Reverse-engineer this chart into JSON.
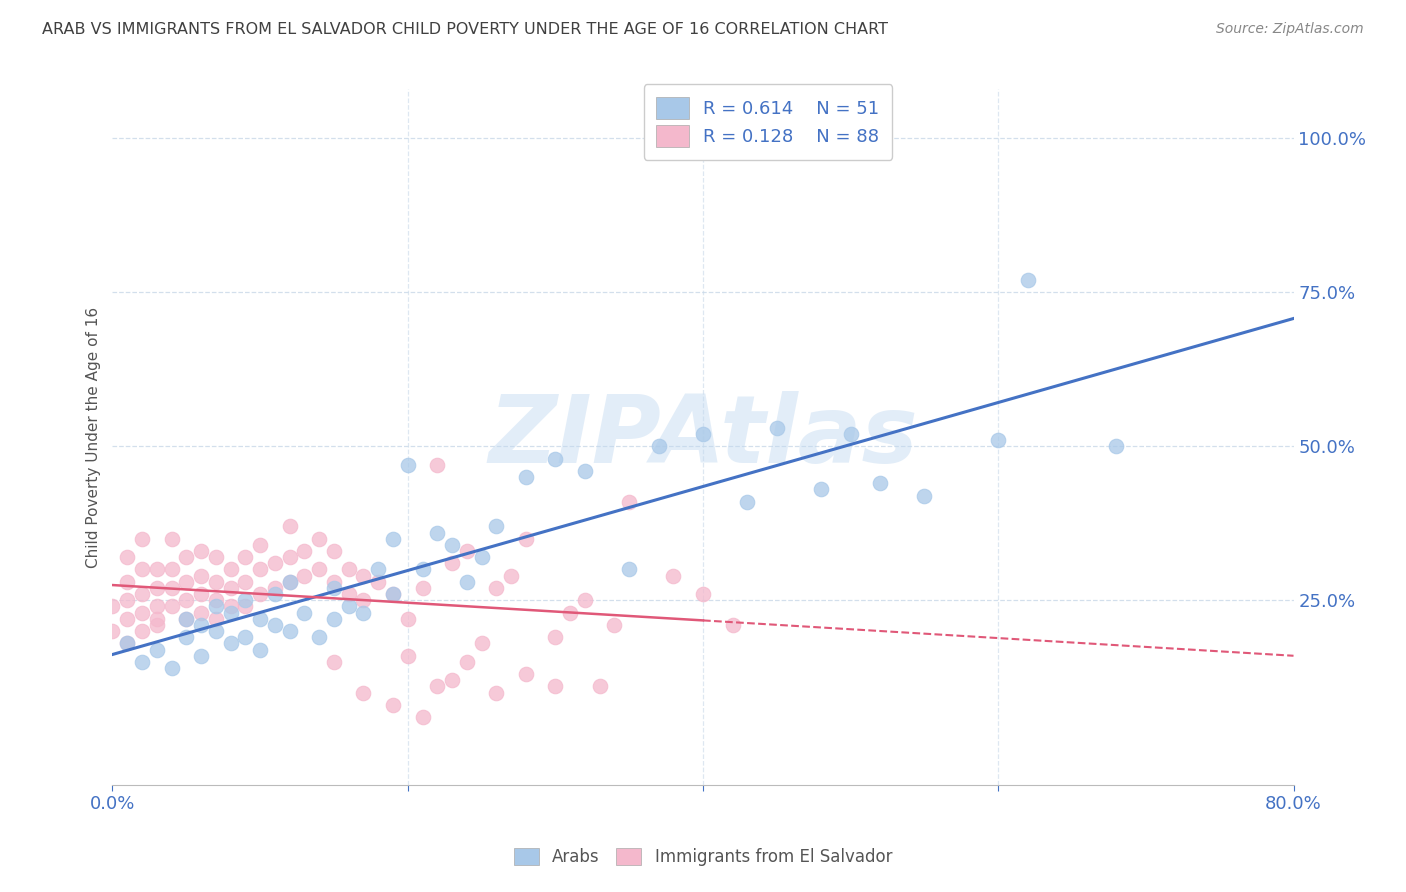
{
  "title": "ARAB VS IMMIGRANTS FROM EL SALVADOR CHILD POVERTY UNDER THE AGE OF 16 CORRELATION CHART",
  "source": "Source: ZipAtlas.com",
  "ylabel": "Child Poverty Under the Age of 16",
  "xlim": [
    0.0,
    0.8
  ],
  "ylim": [
    -0.05,
    1.08
  ],
  "yticks": [
    0.25,
    0.5,
    0.75,
    1.0
  ],
  "yticklabels": [
    "25.0%",
    "50.0%",
    "75.0%",
    "100.0%"
  ],
  "arab_r": "0.614",
  "arab_n": "51",
  "salvador_r": "0.128",
  "salvador_n": "88",
  "watermark": "ZIPAtlas",
  "arab_color": "#a8c8e8",
  "salvador_color": "#f4b8cc",
  "trendline_arab_color": "#4472c4",
  "trendline_salvador_color": "#e05878",
  "background_color": "#ffffff",
  "grid_color": "#c8d8e8",
  "axis_label_color": "#4472c4",
  "title_color": "#404040",
  "arab_scatter_x": [
    0.01,
    0.02,
    0.03,
    0.04,
    0.05,
    0.05,
    0.06,
    0.06,
    0.07,
    0.07,
    0.08,
    0.08,
    0.09,
    0.09,
    0.1,
    0.1,
    0.11,
    0.11,
    0.12,
    0.12,
    0.13,
    0.14,
    0.15,
    0.15,
    0.16,
    0.17,
    0.18,
    0.19,
    0.19,
    0.2,
    0.21,
    0.22,
    0.23,
    0.24,
    0.25,
    0.26,
    0.28,
    0.3,
    0.32,
    0.35,
    0.37,
    0.4,
    0.43,
    0.45,
    0.48,
    0.5,
    0.52,
    0.55,
    0.6,
    0.62,
    0.68
  ],
  "arab_scatter_y": [
    0.18,
    0.15,
    0.17,
    0.14,
    0.19,
    0.22,
    0.16,
    0.21,
    0.2,
    0.24,
    0.18,
    0.23,
    0.19,
    0.25,
    0.17,
    0.22,
    0.21,
    0.26,
    0.2,
    0.28,
    0.23,
    0.19,
    0.22,
    0.27,
    0.24,
    0.23,
    0.3,
    0.26,
    0.35,
    0.47,
    0.3,
    0.36,
    0.34,
    0.28,
    0.32,
    0.37,
    0.45,
    0.48,
    0.46,
    0.3,
    0.5,
    0.52,
    0.41,
    0.53,
    0.43,
    0.52,
    0.44,
    0.42,
    0.51,
    0.77,
    0.5
  ],
  "salvador_scatter_x": [
    0.0,
    0.0,
    0.01,
    0.01,
    0.01,
    0.01,
    0.01,
    0.02,
    0.02,
    0.02,
    0.02,
    0.02,
    0.03,
    0.03,
    0.03,
    0.03,
    0.03,
    0.04,
    0.04,
    0.04,
    0.04,
    0.05,
    0.05,
    0.05,
    0.05,
    0.06,
    0.06,
    0.06,
    0.06,
    0.07,
    0.07,
    0.07,
    0.07,
    0.08,
    0.08,
    0.08,
    0.09,
    0.09,
    0.09,
    0.1,
    0.1,
    0.1,
    0.11,
    0.11,
    0.12,
    0.12,
    0.12,
    0.13,
    0.13,
    0.14,
    0.14,
    0.15,
    0.15,
    0.16,
    0.16,
    0.17,
    0.17,
    0.18,
    0.19,
    0.2,
    0.21,
    0.22,
    0.23,
    0.24,
    0.25,
    0.26,
    0.27,
    0.28,
    0.3,
    0.31,
    0.32,
    0.33,
    0.34,
    0.35,
    0.38,
    0.4,
    0.42,
    0.2,
    0.22,
    0.24,
    0.26,
    0.28,
    0.3,
    0.15,
    0.17,
    0.19,
    0.21,
    0.23
  ],
  "salvador_scatter_y": [
    0.2,
    0.24,
    0.18,
    0.22,
    0.25,
    0.28,
    0.32,
    0.2,
    0.23,
    0.26,
    0.3,
    0.35,
    0.21,
    0.24,
    0.27,
    0.3,
    0.22,
    0.24,
    0.27,
    0.3,
    0.35,
    0.22,
    0.25,
    0.28,
    0.32,
    0.23,
    0.26,
    0.29,
    0.33,
    0.22,
    0.25,
    0.28,
    0.32,
    0.24,
    0.27,
    0.3,
    0.24,
    0.28,
    0.32,
    0.26,
    0.3,
    0.34,
    0.27,
    0.31,
    0.28,
    0.32,
    0.37,
    0.29,
    0.33,
    0.3,
    0.35,
    0.28,
    0.33,
    0.3,
    0.26,
    0.29,
    0.25,
    0.28,
    0.26,
    0.22,
    0.27,
    0.47,
    0.31,
    0.33,
    0.18,
    0.27,
    0.29,
    0.35,
    0.11,
    0.23,
    0.25,
    0.11,
    0.21,
    0.41,
    0.29,
    0.26,
    0.21,
    0.16,
    0.11,
    0.15,
    0.1,
    0.13,
    0.19,
    0.15,
    0.1,
    0.08,
    0.06,
    0.12
  ]
}
